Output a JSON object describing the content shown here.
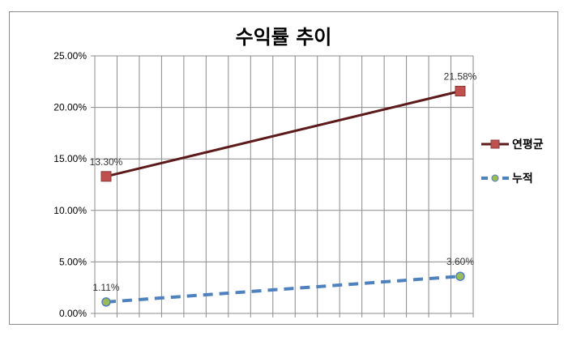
{
  "chart_data": {
    "type": "line",
    "title": "수익률 추이",
    "yticks": [
      "0.00%",
      "5.00%",
      "10.00%",
      "15.00%",
      "20.00%",
      "25.00%"
    ],
    "ylim": [
      0,
      25
    ],
    "x": [
      1,
      2
    ],
    "grid": true,
    "legend_position": "right",
    "series": [
      {
        "name": "연평균",
        "values": [
          13.3,
          21.58
        ],
        "labels": [
          "13.30%",
          "21.58%"
        ],
        "color": "#5c1a1a",
        "marker_color": "#c0504d",
        "marker": "square",
        "dash": "solid"
      },
      {
        "name": "누적",
        "values": [
          1.11,
          3.6
        ],
        "labels": [
          "1.11%",
          "3.60%"
        ],
        "color": "#4f81bd",
        "marker_color": "#9bbb59",
        "marker": "circle",
        "dash": "dashed"
      }
    ]
  }
}
